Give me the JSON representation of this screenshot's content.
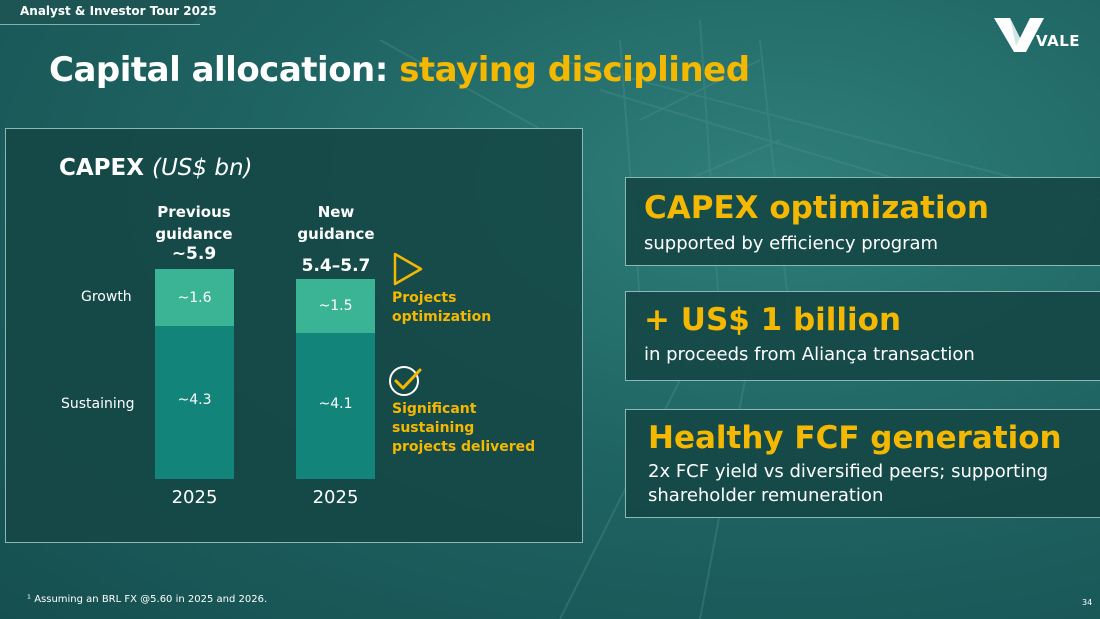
{
  "header": {
    "tour_label": "Analyst & Investor Tour 2025",
    "brand": "VALE"
  },
  "title": {
    "main": "Capital allocation: ",
    "accent": "staying disciplined"
  },
  "capex": {
    "label": "CAPEX",
    "unit": "(US$ bn)",
    "row_labels": {
      "growth": "Growth",
      "sustaining": "Sustaining"
    },
    "columns": [
      {
        "head_line1": "Previous",
        "head_line2": "guidance",
        "total": "~5.9",
        "growth": "~1.6",
        "sustaining": "~4.3",
        "year": "2025"
      },
      {
        "head_line1": "New",
        "head_line2": "guidance",
        "total": "5.4–5.7",
        "growth": "~1.5",
        "sustaining": "~4.1",
        "year": "2025"
      }
    ],
    "notes": [
      {
        "icon": "play-triangle-icon",
        "line1": "Projects",
        "line2": "optimization"
      },
      {
        "icon": "check-circle-icon",
        "line1": "Significant",
        "line2": "sustaining",
        "line3": "projects delivered"
      }
    ]
  },
  "cards": [
    {
      "head": "CAPEX optimization",
      "sub1": "supported by efficiency program"
    },
    {
      "head": "+ US$ 1 billion",
      "sub1": "in proceeds from Aliança transaction"
    },
    {
      "head": "Healthy FCF generation",
      "sub1": "2x FCF yield vs diversified peers; supporting",
      "sub2": "shareholder remuneration"
    }
  ],
  "footnote": "¹ Assuming an BRL FX @5.60 in 2025 and 2026.",
  "page_number": "34",
  "colors": {
    "accent": "#f5b800",
    "growth": "#3bb496",
    "sustaining": "#138479",
    "background": "#1f6563"
  }
}
